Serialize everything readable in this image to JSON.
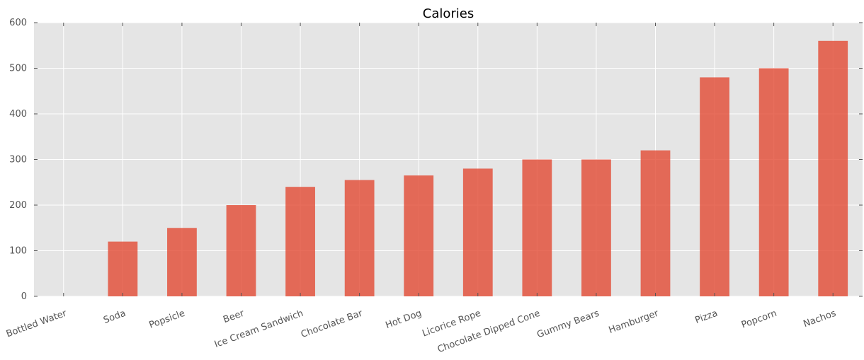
{
  "chart_data": {
    "type": "bar",
    "title": "Calories",
    "xlabel": "",
    "ylabel": "",
    "categories": [
      "Bottled Water",
      "Soda",
      "Popsicle",
      "Beer",
      "Ice Cream Sandwich",
      "Chocolate Bar",
      "Hot Dog",
      "Licorice Rope",
      "Chocolate Dipped Cone",
      "Gummy Bears",
      "Hamburger",
      "Pizza",
      "Popcorn",
      "Nachos"
    ],
    "values": [
      0,
      120,
      150,
      200,
      240,
      255,
      265,
      280,
      300,
      300,
      320,
      480,
      500,
      560
    ],
    "ylim": [
      0,
      600
    ],
    "yticks": [
      "0",
      "100",
      "200",
      "300",
      "400",
      "500",
      "600"
    ],
    "grid": true,
    "legend": "none",
    "colors": {
      "bar": "#e24a33",
      "background": "#e5e5e5",
      "grid": "#ffffff",
      "text": "#555555"
    }
  }
}
